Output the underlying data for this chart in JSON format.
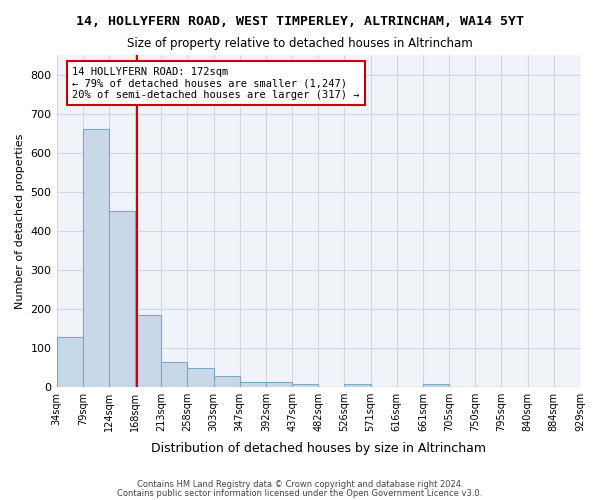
{
  "title1": "14, HOLLYFERN ROAD, WEST TIMPERLEY, ALTRINCHAM, WA14 5YT",
  "title2": "Size of property relative to detached houses in Altrincham",
  "xlabel": "Distribution of detached houses by size in Altrincham",
  "ylabel": "Number of detached properties",
  "footer1": "Contains HM Land Registry data © Crown copyright and database right 2024.",
  "footer2": "Contains public sector information licensed under the Open Government Licence v3.0.",
  "bin_labels": [
    "34sqm",
    "79sqm",
    "124sqm",
    "168sqm",
    "213sqm",
    "258sqm",
    "303sqm",
    "347sqm",
    "392sqm",
    "437sqm",
    "482sqm",
    "526sqm",
    "571sqm",
    "616sqm",
    "661sqm",
    "705sqm",
    "750sqm",
    "795sqm",
    "840sqm",
    "884sqm",
    "929sqm"
  ],
  "bar_heights": [
    127,
    660,
    450,
    183,
    62,
    48,
    28,
    12,
    13,
    8,
    0,
    7,
    0,
    0,
    6,
    0,
    0,
    0,
    0,
    0
  ],
  "bar_color": "#c8d8e8",
  "bar_edge_color": "#7aaac8",
  "property_bin_index": 3,
  "red_line_color": "#cc0000",
  "annotation_text": "14 HOLLYFERN ROAD: 172sqm\n← 79% of detached houses are smaller (1,247)\n20% of semi-detached houses are larger (317) →",
  "annotation_box_color": "white",
  "annotation_box_edge_color": "#cc0000",
  "ylim": [
    0,
    850
  ],
  "yticks": [
    0,
    100,
    200,
    300,
    400,
    500,
    600,
    700,
    800
  ],
  "grid_color": "#d0d8e0",
  "background_color": "#f0f4f8"
}
